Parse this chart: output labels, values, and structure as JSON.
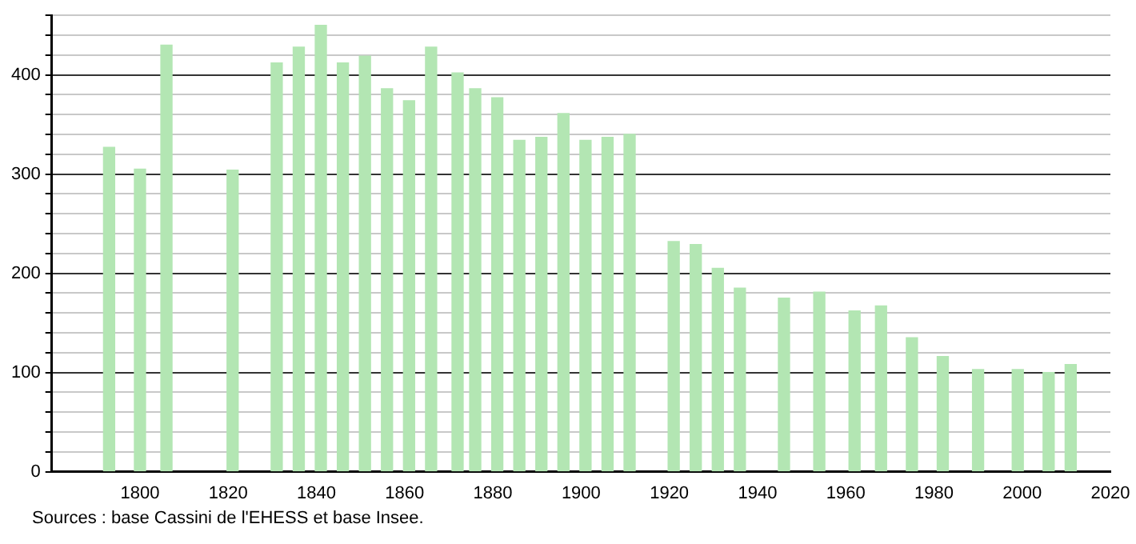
{
  "chart_data": {
    "type": "bar",
    "x": [
      1793,
      1800,
      1806,
      1821,
      1831,
      1836,
      1841,
      1846,
      1851,
      1856,
      1861,
      1866,
      1872,
      1876,
      1881,
      1886,
      1891,
      1896,
      1901,
      1906,
      1911,
      1921,
      1926,
      1931,
      1936,
      1946,
      1954,
      1962,
      1968,
      1975,
      1982,
      1990,
      1999,
      2006,
      2011
    ],
    "values": [
      327,
      305,
      430,
      304,
      412,
      428,
      450,
      412,
      419,
      386,
      374,
      428,
      402,
      386,
      377,
      334,
      337,
      361,
      334,
      337,
      340,
      232,
      229,
      205,
      185,
      175,
      181,
      162,
      167,
      135,
      116,
      103,
      103,
      100,
      108
    ],
    "color": "#b3e6b3",
    "xlim": [
      1780,
      2020
    ],
    "xticks": [
      1800,
      1820,
      1840,
      1860,
      1880,
      1900,
      1920,
      1940,
      1960,
      1980,
      2000,
      2020
    ],
    "ylim": [
      0,
      460
    ],
    "yticks": [
      0,
      {
        "value": 20,
        "label": null
      },
      {
        "value": 40,
        "label": null
      },
      {
        "value": 60,
        "label": null
      },
      {
        "value": 80,
        "label": null
      },
      100,
      {
        "value": 120,
        "label": null
      },
      {
        "value": 140,
        "label": null
      },
      {
        "value": 160,
        "label": null
      },
      {
        "value": 180,
        "label": null
      },
      200,
      {
        "value": 220,
        "label": null
      },
      {
        "value": 240,
        "label": null
      },
      {
        "value": 260,
        "label": null
      },
      {
        "value": 280,
        "label": null
      },
      300,
      {
        "value": 320,
        "label": null
      },
      {
        "value": 340,
        "label": null
      },
      {
        "value": 360,
        "label": null
      },
      {
        "value": 380,
        "label": null
      },
      400,
      {
        "value": 420,
        "label": null
      },
      {
        "value": 440,
        "label": null
      },
      {
        "value": 460,
        "label": null
      }
    ],
    "grid": "y",
    "legend": false,
    "annotations": [
      "Sources : base Cassini de l'EHESS et base Insee."
    ]
  }
}
